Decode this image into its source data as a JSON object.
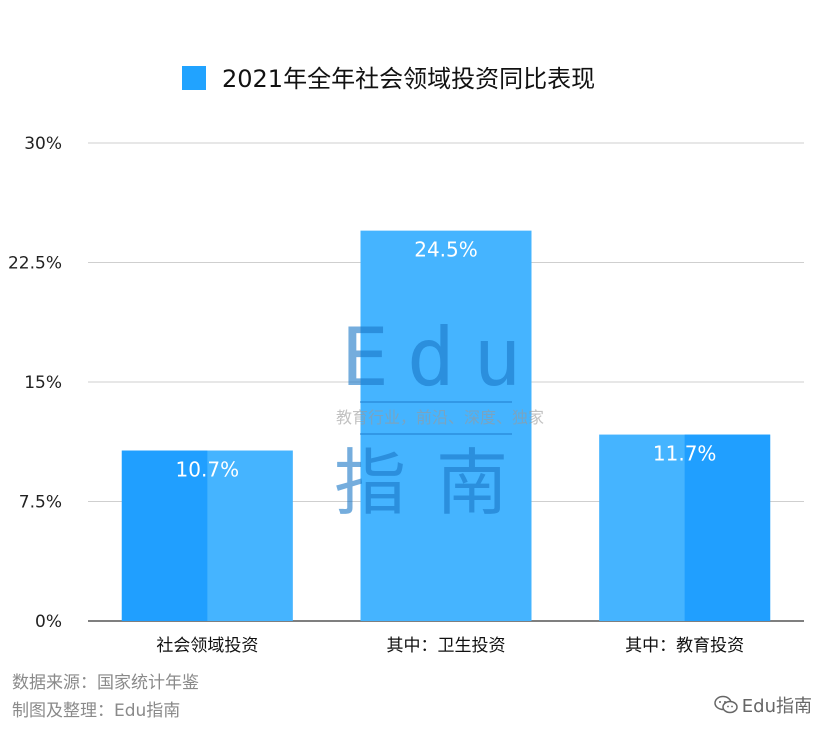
{
  "chart_data": {
    "type": "bar",
    "title": "2021年全年社会领域投资同比表现",
    "legend": {
      "placement": "top",
      "entries": [
        "2021年全年社会领域投资同比表现"
      ]
    },
    "categories": [
      "社会领域投资",
      "其中：卫生投资",
      "其中：教育投资"
    ],
    "series": [
      {
        "name": "2021年全年社会领域投资同比表现",
        "values": [
          10.7,
          24.5,
          11.7
        ]
      }
    ],
    "data_labels": [
      "10.7%",
      "24.5%",
      "11.7%"
    ],
    "ylim": [
      0,
      30
    ],
    "yticks": [
      0,
      7.5,
      15,
      22.5,
      30
    ],
    "ytick_labels": [
      "0%",
      "7.5%",
      "15%",
      "22.5%",
      "30%"
    ],
    "grid": true,
    "colors": {
      "bar": "#45B4FF",
      "bar_dark": "#209FFF",
      "legend_swatch": "#21A3FF"
    }
  },
  "footer": {
    "source": "数据来源：国家统计年鉴",
    "credit": "制图及整理：Edu指南"
  },
  "watermark": {
    "brand": "Edu指南",
    "center_text": "Edu",
    "center_sub": "教育行业，前沿、深度、独家",
    "center_cn": "指南"
  }
}
